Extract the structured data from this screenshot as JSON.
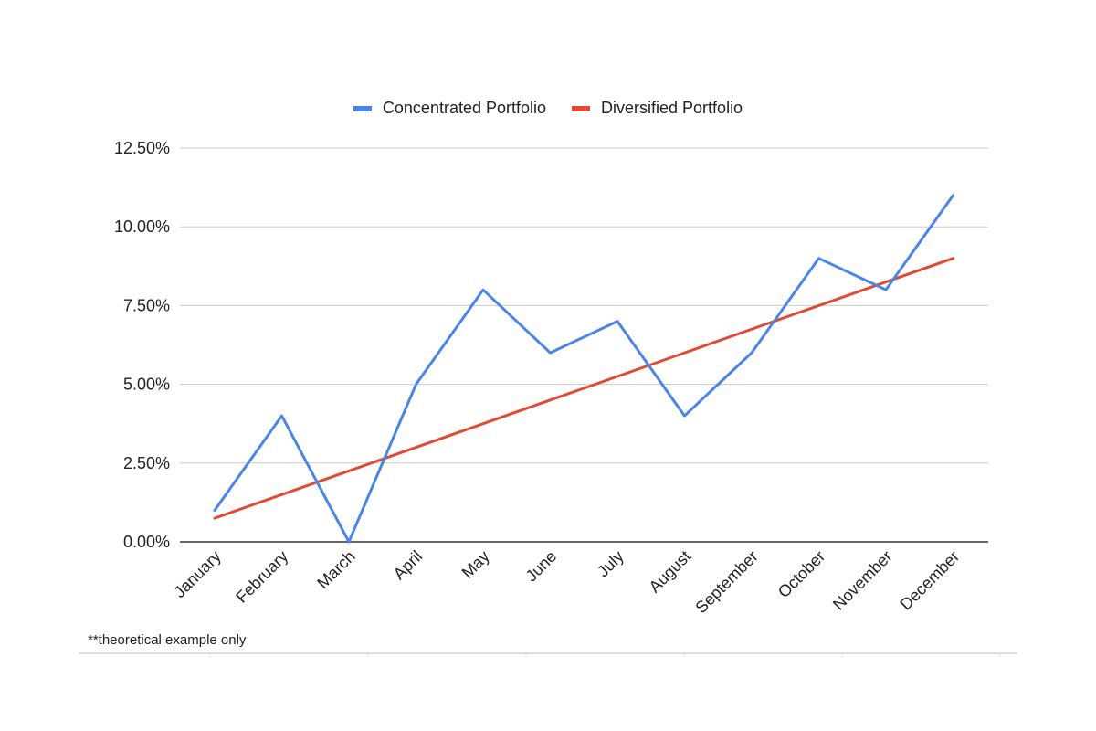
{
  "chart_data": {
    "type": "line",
    "categories": [
      "January",
      "February",
      "March",
      "April",
      "May",
      "June",
      "July",
      "August",
      "September",
      "October",
      "November",
      "December"
    ],
    "series": [
      {
        "name": "Concentrated Portfolio",
        "color": "#4a86e8",
        "values": [
          1.0,
          4.0,
          0.0,
          5.0,
          8.0,
          6.0,
          7.0,
          4.0,
          6.0,
          9.0,
          8.0,
          11.0
        ]
      },
      {
        "name": "Diversified Portfolio",
        "color": "#e24a33",
        "values": [
          0.75,
          1.5,
          2.25,
          3.0,
          3.75,
          4.5,
          5.25,
          6.0,
          6.75,
          7.5,
          8.25,
          9.0
        ]
      }
    ],
    "y_ticks": [
      "0.00%",
      "2.50%",
      "5.00%",
      "7.50%",
      "10.00%",
      "12.50%"
    ],
    "y_tick_values": [
      0,
      2.5,
      5,
      7.5,
      10,
      12.5
    ],
    "ylim": [
      0,
      12.5
    ],
    "grid": true,
    "legend_position": "top-center",
    "footnote": "**theoretical example only"
  }
}
